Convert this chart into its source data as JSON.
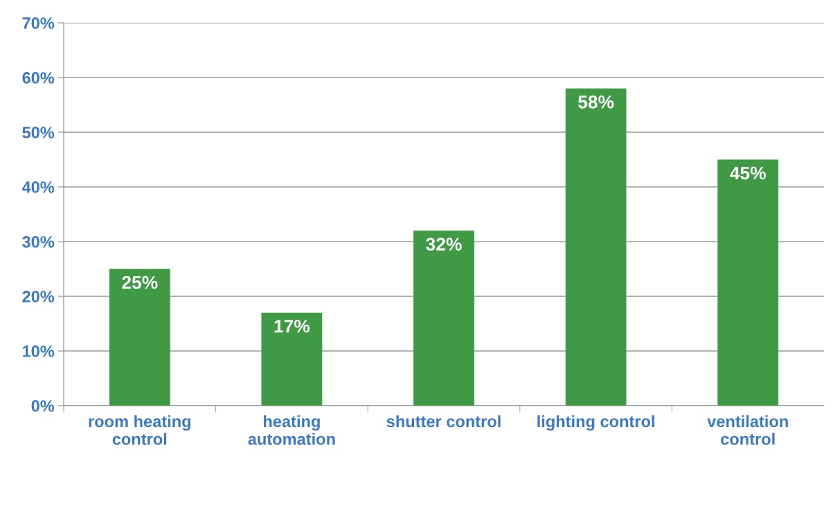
{
  "chart_data": {
    "type": "bar",
    "categories": [
      "room heating\ncontrol",
      "heating\nautomation",
      "shutter control",
      "lighting control",
      "ventilation\ncontrol"
    ],
    "values": [
      25,
      17,
      32,
      58,
      45
    ],
    "value_labels": [
      "25%",
      "17%",
      "32%",
      "58%",
      "45%"
    ],
    "color": "#3f9945",
    "ylim": [
      0,
      70
    ],
    "yticks": [
      {
        "value": 0,
        "label": "0%"
      },
      {
        "value": 10,
        "label": "10%"
      },
      {
        "value": 20,
        "label": "20%"
      },
      {
        "value": 30,
        "label": "30%"
      },
      {
        "value": 40,
        "label": "40%"
      },
      {
        "value": 50,
        "label": "50%"
      },
      {
        "value": 60,
        "label": "60%"
      },
      {
        "value": 70,
        "label": "70%"
      }
    ],
    "grid": "y",
    "legend": false
  }
}
